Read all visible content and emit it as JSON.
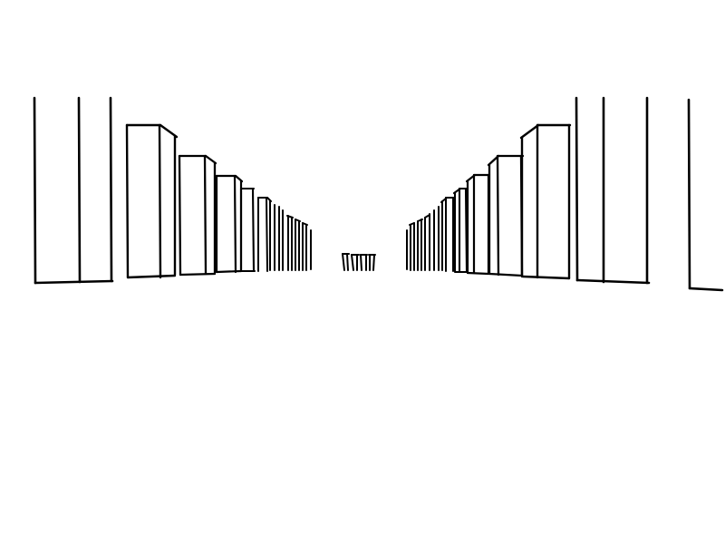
{
  "scene": {
    "subject": "perspective-sketch-of-building-rows",
    "style": "black-ink-line-drawing",
    "colors": {
      "background": "#ffffff",
      "ink": "#000000"
    }
  }
}
